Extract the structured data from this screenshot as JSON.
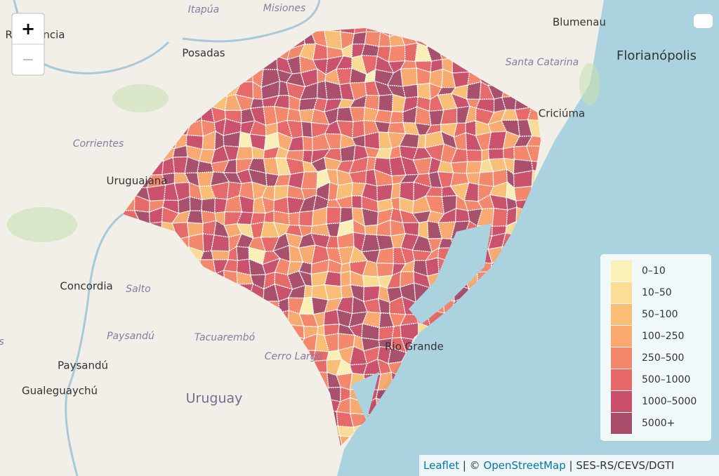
{
  "map": {
    "zoom_in": "+",
    "zoom_out": "−",
    "labels": [
      "Itapúa",
      "Misiones",
      "Blumenau",
      "Resistencia",
      "Posadas",
      "Santa Catarina",
      "Florianópolis",
      "Criciúma",
      "Corrientes",
      "Uruguaiana",
      "Concordia",
      "Salto",
      "Paysandú",
      "Tacuarembó",
      "Cerro Largo",
      "Paysandú",
      "Gualeguaychú",
      "Uruguay",
      "Entre Rios",
      "Rio Grande"
    ],
    "legend": [
      {
        "label": "0–10",
        "color": "#fcefb0"
      },
      {
        "label": "10–50",
        "color": "#fcd98a"
      },
      {
        "label": "50–100",
        "color": "#fbb866"
      },
      {
        "label": "100–250",
        "color": "#f9a060"
      },
      {
        "label": "250–500",
        "color": "#f47a5a"
      },
      {
        "label": "500–1000",
        "color": "#e45858"
      },
      {
        "label": "1000–5000",
        "color": "#c43c5a"
      },
      {
        "label": "5000+",
        "color": "#9e3a5a"
      }
    ],
    "attribution": [
      "Leaflet",
      " | © ",
      "OpenStreetMap",
      " | SES-RS/CEVS/DGTI"
    ]
  }
}
